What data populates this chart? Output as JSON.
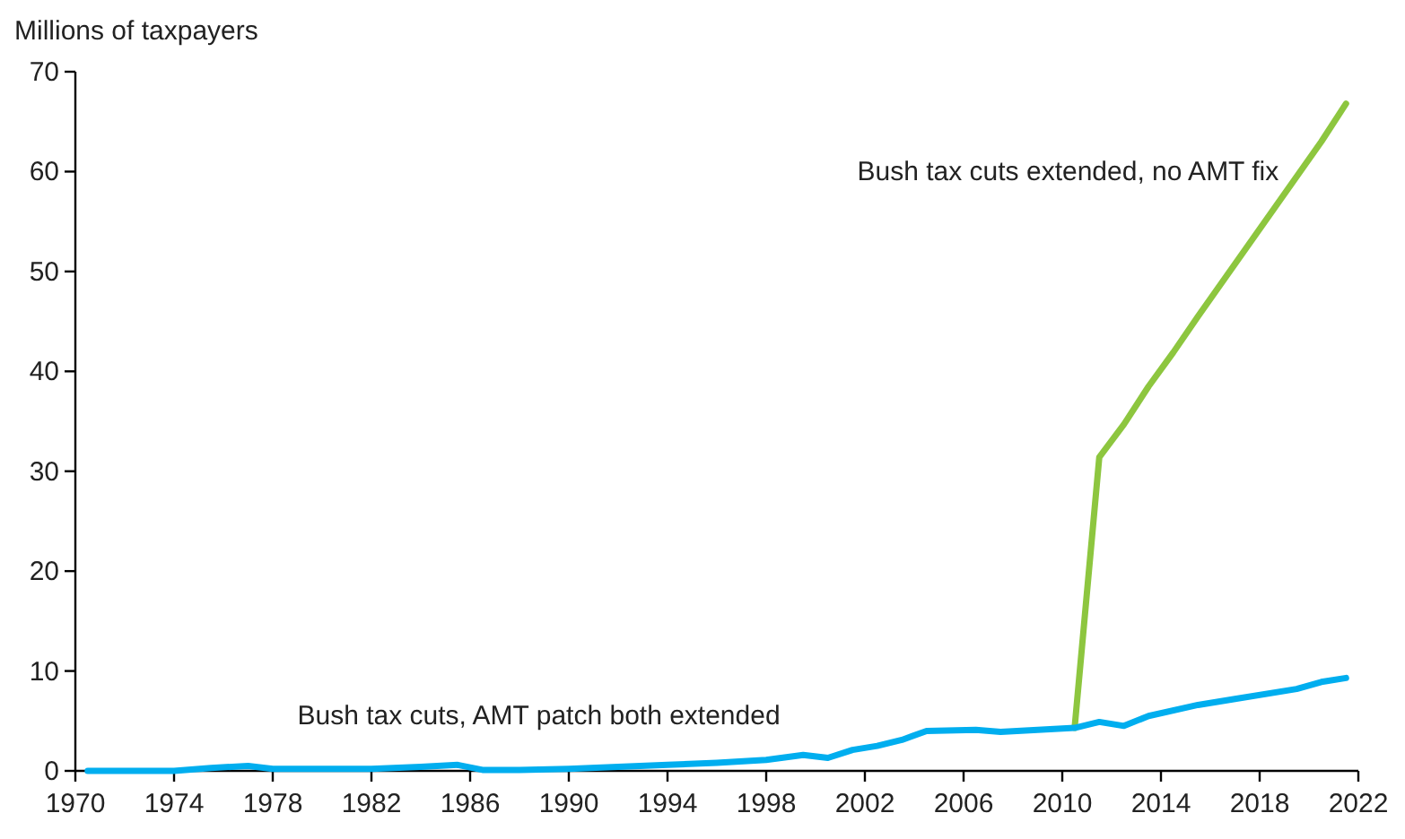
{
  "chart_data": {
    "type": "line",
    "ylabel": "Millions of taxpayers",
    "xlim": [
      1970,
      2022
    ],
    "xticks": [
      1970,
      1974,
      1978,
      1982,
      1986,
      1990,
      1994,
      1998,
      2002,
      2006,
      2010,
      2014,
      2018,
      2022
    ],
    "ylim": [
      0,
      70
    ],
    "yticks": [
      0,
      10,
      20,
      30,
      40,
      50,
      60,
      70
    ],
    "grid": false,
    "legend": false,
    "series": [
      {
        "name": "Bush tax cuts extended, no AMT fix",
        "color": "#8dc63f",
        "x": [
          2010.5,
          2011.5,
          2012.5,
          2013.5,
          2014.5,
          2015.5,
          2016.5,
          2017.5,
          2018.5,
          2019.5,
          2020.5,
          2021.5
        ],
        "values": [
          4.3,
          31.4,
          34.7,
          38.5,
          41.9,
          45.5,
          49,
          52.5,
          56,
          59.5,
          63,
          66.8
        ]
      },
      {
        "name": "Bush tax cuts, AMT patch both extended",
        "color": "#00aeef",
        "x": [
          1970.5,
          1972,
          1974,
          1975.5,
          1977,
          1978,
          1980,
          1982,
          1984,
          1985.5,
          1986.5,
          1988,
          1990,
          1992,
          1994,
          1996,
          1998,
          1999.5,
          2000.5,
          2001.5,
          2002.5,
          2003.5,
          2004.5,
          2006.5,
          2007.5,
          2009,
          2010.5,
          2011.5,
          2012.5,
          2013.5,
          2015.5,
          2017,
          2019.5,
          2020.5,
          2021.5
        ],
        "values": [
          0,
          0,
          0,
          0.3,
          0.5,
          0.2,
          0.2,
          0.2,
          0.4,
          0.6,
          0.1,
          0.1,
          0.2,
          0.4,
          0.6,
          0.8,
          1.1,
          1.6,
          1.3,
          2.1,
          2.5,
          3.1,
          4,
          4.1,
          3.9,
          4.1,
          4.3,
          4.9,
          4.5,
          5.5,
          6.6,
          7.2,
          8.2,
          8.9,
          9.3
        ]
      }
    ]
  }
}
